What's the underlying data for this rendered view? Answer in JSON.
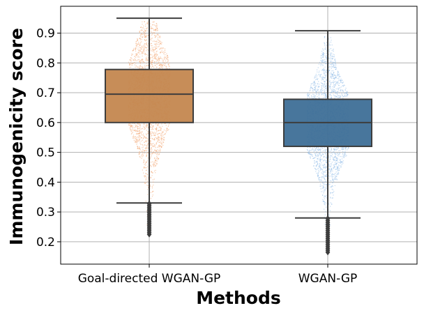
{
  "chart_data": {
    "type": "box",
    "title": "",
    "xlabel": "Methods",
    "ylabel": "Immunogenicity score",
    "ylim": [
      0.125,
      0.99
    ],
    "yticks": [
      0.2,
      0.3,
      0.4,
      0.5,
      0.6,
      0.7,
      0.8,
      0.9
    ],
    "grid": true,
    "categories": [
      "Goal-directed WGAN-GP",
      "WGAN-GP"
    ],
    "boxes": [
      {
        "name": "Goal-directed WGAN-GP",
        "whisker_low": 0.33,
        "q1": 0.6,
        "median": 0.695,
        "q3": 0.778,
        "whisker_high": 0.95,
        "outliers_min": 0.225,
        "outliers_max": 0.328,
        "box_color": "#c4874f",
        "points_color": "#f2a470",
        "points_range": [
          0.225,
          0.94
        ]
      },
      {
        "name": "WGAN-GP",
        "whisker_low": 0.28,
        "q1": 0.52,
        "median": 0.6,
        "q3": 0.678,
        "whisker_high": 0.908,
        "outliers_min": 0.165,
        "outliers_max": 0.278,
        "box_color": "#3e6f97",
        "points_color": "#8fbbe8",
        "points_range": [
          0.165,
          0.89
        ]
      }
    ]
  }
}
